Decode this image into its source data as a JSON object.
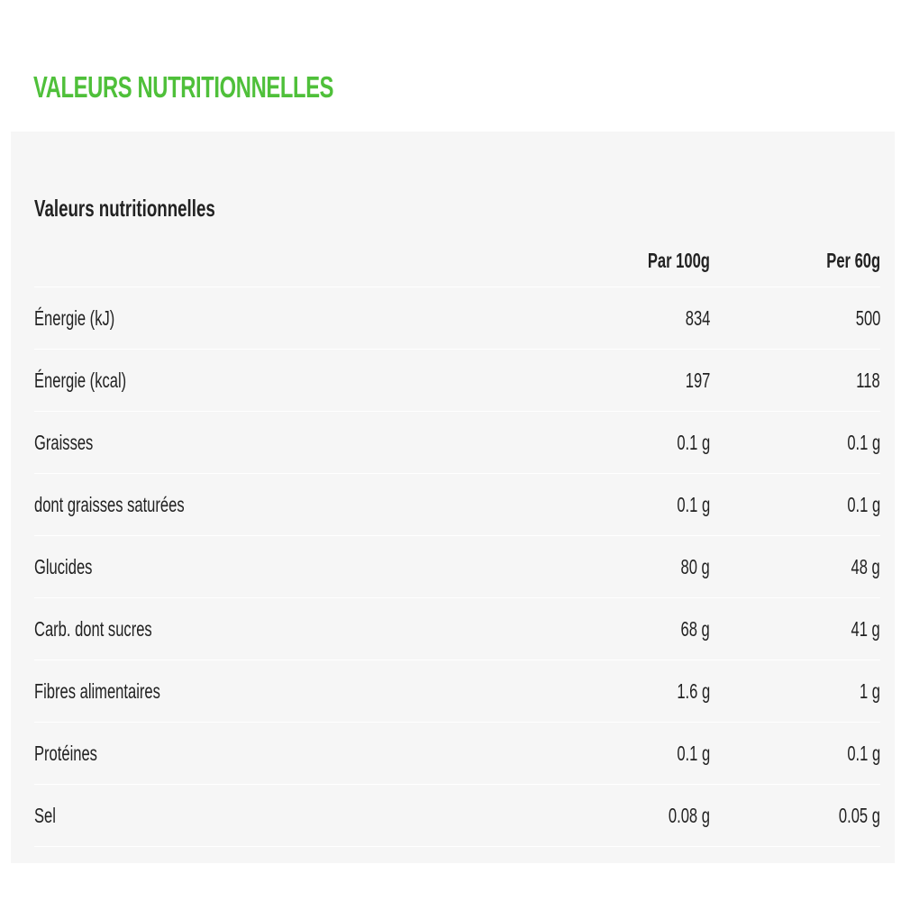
{
  "title": "VALEURS NUTRITIONNELLES",
  "accent_color": "#4fc03a",
  "panel": {
    "subtitle": "Valeurs nutritionnelles",
    "columns": [
      "Par 100g",
      "Per 60g"
    ],
    "rows": [
      {
        "label": "Énergie (kJ)",
        "per100": "834",
        "per60": "500"
      },
      {
        "label": "Énergie (kcal)",
        "per100": "197",
        "per60": "118"
      },
      {
        "label": "Graisses",
        "per100": "0.1 g",
        "per60": "0.1 g"
      },
      {
        "label": "dont graisses saturées",
        "per100": "0.1 g",
        "per60": "0.1 g"
      },
      {
        "label": "Glucides",
        "per100": "80 g",
        "per60": "48 g"
      },
      {
        "label": "Carb. dont sucres",
        "per100": "68 g",
        "per60": "41 g"
      },
      {
        "label": "Fibres alimentaires",
        "per100": "1.6 g",
        "per60": "1 g"
      },
      {
        "label": "Protéines",
        "per100": "0.1 g",
        "per60": "0.1 g"
      },
      {
        "label": "Sel",
        "per100": "0.08 g",
        "per60": "0.05 g"
      }
    ]
  }
}
